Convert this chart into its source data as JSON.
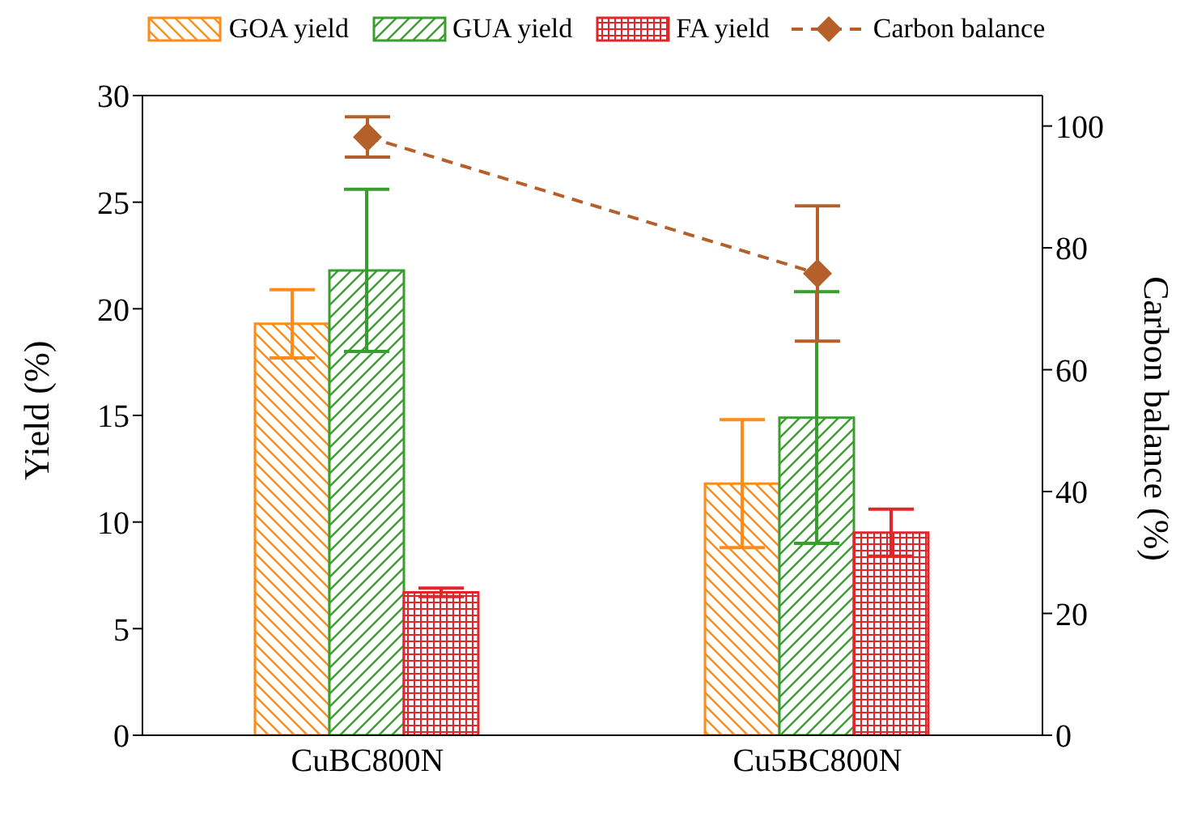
{
  "chart_data": {
    "type": "bar",
    "categories": [
      "CuBC800N",
      "Cu5BC800N"
    ],
    "ylabel": "Yield (%)",
    "y2label": "Carbon balance (%)",
    "series": [
      {
        "name": "GOA yield",
        "color": "#ff8c1a",
        "values": [
          19.3,
          11.8
        ],
        "errors": [
          1.6,
          3.0
        ]
      },
      {
        "name": "GUA yield",
        "color": "#3a9e2f",
        "values": [
          21.8,
          14.9
        ],
        "errors": [
          3.8,
          5.9
        ]
      },
      {
        "name": "FA yield",
        "color": "#e0262b",
        "values": [
          6.7,
          9.5
        ],
        "errors": [
          0.2,
          1.1
        ]
      },
      {
        "name": "Carbon balance",
        "type": "line",
        "axis": "y2",
        "color": "#b5602a",
        "values": [
          98.2,
          75.8
        ],
        "errors": [
          3.3,
          11.1
        ],
        "marker": "diamond",
        "line_style": "dashed"
      }
    ],
    "ylim": [
      0,
      30
    ],
    "yticks": [
      0,
      5,
      10,
      15,
      20,
      25,
      30
    ],
    "y2lim": [
      0,
      105
    ],
    "y2ticks": [
      0,
      20,
      40,
      60,
      80,
      100
    ],
    "legend": "top"
  }
}
